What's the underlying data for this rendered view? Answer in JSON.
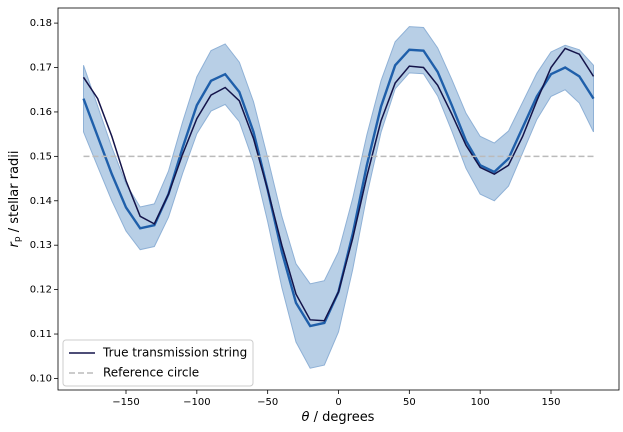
{
  "chart_data": {
    "type": "line",
    "xlabel_symbol": "θ",
    "xlabel_text": " / degrees",
    "ylabel_symbol": "r",
    "ylabel_subscript": "p",
    "ylabel_text": " / stellar radii",
    "x": [
      -180,
      -170,
      -160,
      -150,
      -140,
      -130,
      -120,
      -110,
      -100,
      -90,
      -80,
      -70,
      -60,
      -50,
      -40,
      -30,
      -20,
      -10,
      0,
      10,
      20,
      30,
      40,
      50,
      60,
      70,
      80,
      90,
      100,
      110,
      120,
      130,
      140,
      150,
      160,
      170,
      180
    ],
    "series": [
      {
        "color": "#1f5faa",
        "band_color": "#b8cfe6",
        "band_edge": "#8fb1d6",
        "values": [
          0.163,
          0.1545,
          0.146,
          0.1385,
          0.1338,
          0.1345,
          0.1415,
          0.152,
          0.1615,
          0.167,
          0.1685,
          0.1645,
          0.1555,
          0.1425,
          0.1285,
          0.117,
          0.1118,
          0.1125,
          0.1195,
          0.1325,
          0.148,
          0.1612,
          0.1705,
          0.174,
          0.1738,
          0.169,
          0.1615,
          0.1535,
          0.148,
          0.1465,
          0.1495,
          0.1565,
          0.1635,
          0.1685,
          0.17,
          0.168,
          0.163
        ],
        "errors": [
          0.0075,
          0.0068,
          0.006,
          0.0053,
          0.0048,
          0.0048,
          0.0052,
          0.0058,
          0.0064,
          0.0068,
          0.0068,
          0.0067,
          0.0068,
          0.0072,
          0.008,
          0.0088,
          0.0095,
          0.0095,
          0.009,
          0.008,
          0.0068,
          0.0058,
          0.0053,
          0.0052,
          0.0052,
          0.0054,
          0.0058,
          0.0062,
          0.0065,
          0.0065,
          0.0062,
          0.0057,
          0.0052,
          0.005,
          0.005,
          0.006,
          0.0075
        ]
      },
      {
        "name": "True transmission string",
        "color": "#14144a",
        "values": [
          0.1678,
          0.163,
          0.1545,
          0.1445,
          0.1365,
          0.1348,
          0.1415,
          0.1505,
          0.1585,
          0.1638,
          0.1655,
          0.1625,
          0.154,
          0.1425,
          0.13,
          0.119,
          0.1132,
          0.113,
          0.1195,
          0.1315,
          0.1455,
          0.158,
          0.1665,
          0.1703,
          0.17,
          0.166,
          0.1595,
          0.1525,
          0.1475,
          0.146,
          0.148,
          0.1545,
          0.1625,
          0.17,
          0.1743,
          0.173,
          0.168
        ]
      },
      {
        "name": "Reference circle",
        "color": "#bbbbbb",
        "dashed": true,
        "values": [
          0.15,
          0.15,
          0.15,
          0.15,
          0.15,
          0.15,
          0.15,
          0.15,
          0.15,
          0.15,
          0.15,
          0.15,
          0.15,
          0.15,
          0.15,
          0.15,
          0.15,
          0.15,
          0.15,
          0.15,
          0.15,
          0.15,
          0.15,
          0.15,
          0.15,
          0.15,
          0.15,
          0.15,
          0.15,
          0.15,
          0.15,
          0.15,
          0.15,
          0.15,
          0.15,
          0.15,
          0.15
        ]
      }
    ],
    "xlim": [
      -198,
      198
    ],
    "ylim": [
      0.0974,
      0.1834
    ],
    "xticks": [
      {
        "value": -150,
        "label": "−150"
      },
      {
        "value": -100,
        "label": "−100"
      },
      {
        "value": -50,
        "label": "−50"
      },
      0,
      50,
      100,
      150
    ],
    "yticks": [
      {
        "value": 0.1,
        "label": "0.10"
      },
      0.11,
      0.12,
      0.13,
      0.14,
      0.15,
      0.16,
      0.17,
      0.18
    ],
    "legend": "lower left"
  }
}
